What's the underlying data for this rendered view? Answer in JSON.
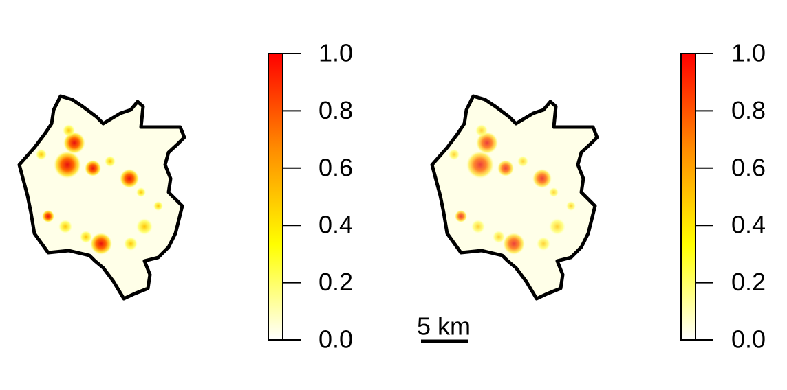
{
  "colormap": [
    "#ffffff",
    "#ffff00",
    "#ff8c00",
    "#ff0000"
  ],
  "panels": [
    {
      "colorbar": {
        "lim": [
          0,
          1
        ],
        "ticks": [
          {
            "value": 0,
            "label": "0.0"
          },
          {
            "value": 0.2,
            "label": "0.2"
          },
          {
            "value": 0.4,
            "label": "0.4"
          },
          {
            "value": 0.6,
            "label": "0.6"
          },
          {
            "value": 0.8,
            "label": "0.8"
          },
          {
            "value": 1,
            "label": "1.0"
          }
        ]
      }
    },
    {
      "colorbar": {
        "lim": [
          0,
          1
        ],
        "ticks": [
          {
            "value": 0,
            "label": "0.0"
          },
          {
            "value": 0.2,
            "label": "0.2"
          },
          {
            "value": 0.4,
            "label": "0.4"
          },
          {
            "value": 0.6,
            "label": "0.6"
          },
          {
            "value": 0.8,
            "label": "0.8"
          },
          {
            "value": 1,
            "label": "1.0"
          }
        ]
      }
    }
  ],
  "scale_bar": {
    "label": "5 km"
  }
}
